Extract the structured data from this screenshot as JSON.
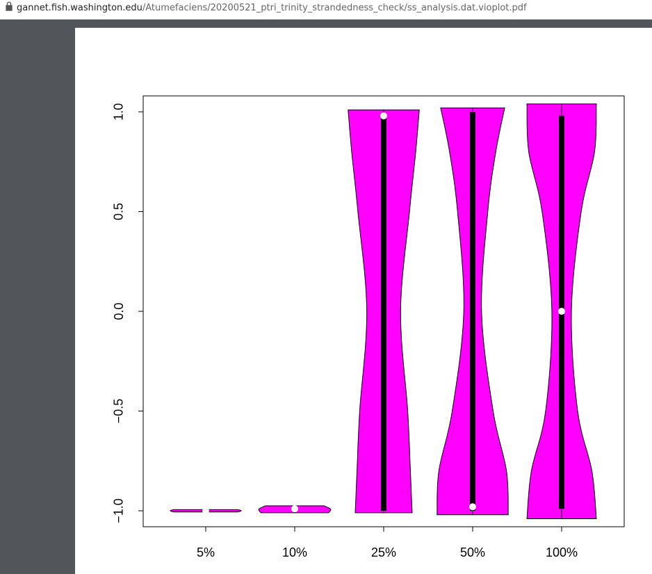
{
  "browser": {
    "url_host": "gannet.fish.washington.edu",
    "url_path": "/Atumefaciens/20200521_ptri_trinity_strandedness_check/ss_analysis.dat.vioplot.pdf"
  },
  "chart_data": {
    "type": "violin",
    "categories": [
      "5%",
      "10%",
      "25%",
      "50%",
      "100%"
    ],
    "color": "#ff00ff",
    "box_color": "#000000",
    "median_color": "#ffffff",
    "ylim": [
      -1.08,
      1.08
    ],
    "yticks": [
      {
        "value": -1,
        "label": "−1.0"
      },
      {
        "value": -0.5,
        "label": "−0.5"
      },
      {
        "value": 0,
        "label": "0.0"
      },
      {
        "value": 0.5,
        "label": "0.5"
      },
      {
        "value": 1,
        "label": "1.0"
      }
    ],
    "violins": [
      {
        "min": -1.006,
        "q1": -1.0,
        "median": -1.0,
        "q3": -1.0,
        "max": -0.994,
        "shape_y": [
          -1.006,
          -1.0,
          -0.994
        ],
        "shape_w": [
          0.36,
          0.4,
          0.36
        ]
      },
      {
        "min": -1.01,
        "q1": -0.995,
        "median": -0.99,
        "q3": -0.99,
        "max": -0.975,
        "shape_y": [
          -1.01,
          -1.0,
          -0.99,
          -0.975
        ],
        "shape_w": [
          0.38,
          0.4,
          0.4,
          0.33
        ]
      },
      {
        "min": -1.01,
        "q1": -1.0,
        "median": 0.98,
        "q3": 0.99,
        "max": 1.01,
        "shape_y": [
          -1.01,
          -0.8,
          -0.5,
          0,
          0.5,
          0.8,
          1.01
        ],
        "shape_w": [
          0.32,
          0.3,
          0.27,
          0.19,
          0.29,
          0.36,
          0.4
        ]
      },
      {
        "min": -1.02,
        "q1": -1.0,
        "median": -0.98,
        "q3": 1.0,
        "max": 1.02,
        "shape_y": [
          -1.02,
          -0.8,
          -0.5,
          0,
          0.5,
          0.8,
          1.02
        ],
        "shape_w": [
          0.4,
          0.38,
          0.23,
          0.1,
          0.17,
          0.26,
          0.36
        ]
      },
      {
        "min": -1.04,
        "q1": -0.99,
        "median": 0,
        "q3": 0.98,
        "max": 1.04,
        "shape_y": [
          -1.04,
          -0.8,
          -0.5,
          0,
          0.5,
          0.8,
          1.04
        ],
        "shape_w": [
          0.39,
          0.34,
          0.18,
          0.11,
          0.22,
          0.37,
          0.39
        ]
      }
    ]
  }
}
